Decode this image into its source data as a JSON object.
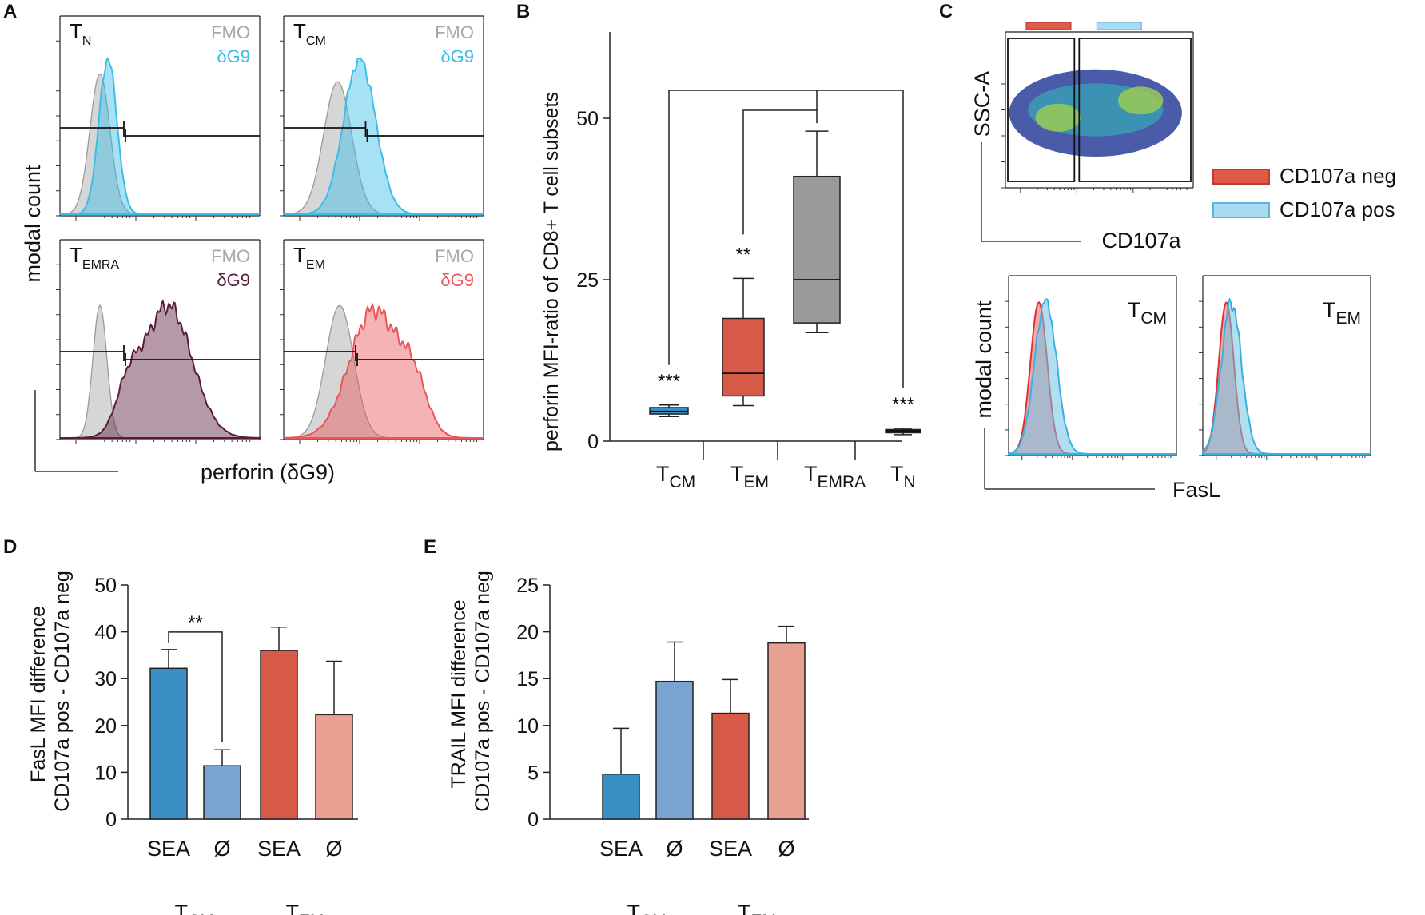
{
  "panels": {
    "A": {
      "letter": "A",
      "ylabel": "modal count",
      "xlabel": "perforin (δG9)",
      "plots": [
        {
          "main": "T",
          "sub": "N",
          "fmo": "FMO",
          "stain": "δG9",
          "color": "#3bbde6"
        },
        {
          "main": "T",
          "sub": "CM",
          "fmo": "FMO",
          "stain": "δG9",
          "color": "#3bbde6"
        },
        {
          "main": "T",
          "sub": "EMRA",
          "fmo": "FMO",
          "stain": "δG9",
          "color": "#5a1c3c"
        },
        {
          "main": "T",
          "sub": "EM",
          "fmo": "FMO",
          "stain": "δG9",
          "color": "#e8565c"
        }
      ]
    },
    "B": {
      "letter": "B"
    },
    "C": {
      "letter": "C",
      "dot_ylabel": "SSC-A",
      "dot_xlabel": "CD107a",
      "legend": [
        {
          "label": "CD107a neg",
          "color": "#e05a4a"
        },
        {
          "label": "CD107a pos",
          "color": "#a8dcf0"
        }
      ],
      "hist_ylabel": "modal count",
      "hist_xlabel": "FasL",
      "hist_plots": [
        {
          "main": "T",
          "sub": "CM"
        },
        {
          "main": "T",
          "sub": "EM"
        }
      ]
    },
    "D": {
      "letter": "D"
    },
    "E": {
      "letter": "E"
    }
  },
  "chart_data": [
    {
      "id": "B",
      "type": "box",
      "ylabel": "perforin MFI-ratio of CD8+ T cell subsets",
      "ylim": [
        0,
        50
      ],
      "yticks": [
        0,
        25,
        50
      ],
      "categories": [
        {
          "main": "T",
          "sub": "CM"
        },
        {
          "main": "T",
          "sub": "EM"
        },
        {
          "main": "T",
          "sub": "EMRA"
        },
        {
          "main": "T",
          "sub": "N"
        }
      ],
      "boxes": [
        {
          "min": 3.8,
          "q1": 4.2,
          "median": 4.6,
          "q3": 5.2,
          "max": 5.6,
          "color": "#3b8fc4",
          "sig": "***"
        },
        {
          "min": 5.5,
          "q1": 7.0,
          "median": 10.5,
          "q3": 19.0,
          "max": 25.2,
          "color": "#d75a48",
          "sig": "**"
        },
        {
          "min": 16.8,
          "q1": 18.3,
          "median": 25.0,
          "q3": 41.0,
          "max": 48.0,
          "color": "#9a9a9a",
          "sig": ""
        },
        {
          "min": 1.0,
          "q1": 1.3,
          "median": 1.6,
          "q3": 1.8,
          "max": 2.0,
          "color": "#222222",
          "sig": "***"
        }
      ]
    },
    {
      "id": "D",
      "type": "bar",
      "ylabel_lines": [
        "FasL MFI difference",
        "CD107a pos - CD107a neg"
      ],
      "ylim": [
        0,
        50
      ],
      "yticks": [
        0,
        10,
        20,
        30,
        40,
        50
      ],
      "categories": [
        "SEA",
        "Ø",
        "SEA",
        "Ø"
      ],
      "groups": [
        {
          "main": "T",
          "sub": "CM"
        },
        {
          "main": "T",
          "sub": "EM"
        }
      ],
      "values": [
        32.2,
        11.4,
        36.0,
        22.3
      ],
      "errors": [
        4.0,
        3.4,
        5.0,
        11.4
      ],
      "colors": [
        "#3a8fc4",
        "#7aa5d3",
        "#d75a48",
        "#e8a090"
      ],
      "significance": {
        "pair": [
          0,
          1
        ],
        "label": "**"
      }
    },
    {
      "id": "E",
      "type": "bar",
      "ylabel_lines": [
        "TRAIL MFI difference",
        "CD107a pos - CD107a neg"
      ],
      "ylim": [
        0,
        25
      ],
      "yticks": [
        0,
        5,
        10,
        15,
        20,
        25
      ],
      "categories": [
        "SEA",
        "Ø",
        "SEA",
        "Ø"
      ],
      "groups": [
        {
          "main": "T",
          "sub": "CM"
        },
        {
          "main": "T",
          "sub": "EM"
        }
      ],
      "values": [
        4.8,
        14.7,
        11.3,
        18.8
      ],
      "errors": [
        4.9,
        4.2,
        3.6,
        1.8
      ],
      "colors": [
        "#3a8fc4",
        "#7aa5d3",
        "#d75a48",
        "#e8a090"
      ]
    }
  ]
}
